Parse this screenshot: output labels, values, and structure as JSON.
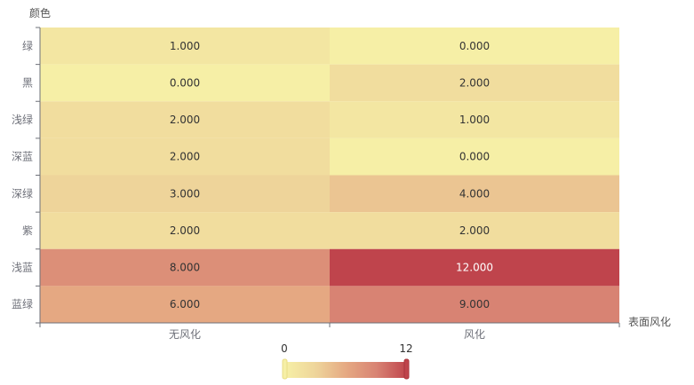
{
  "chart_data": {
    "type": "heatmap",
    "ylabel": "颜色",
    "xlabel": "表面风化",
    "x_categories": [
      "无风化",
      "风化"
    ],
    "y_categories": [
      "绿",
      "黑",
      "浅绿",
      "深蓝",
      "深绿",
      "紫",
      "浅蓝",
      "蓝绿"
    ],
    "values": [
      [
        1,
        0
      ],
      [
        0,
        2
      ],
      [
        2,
        1
      ],
      [
        2,
        0
      ],
      [
        3,
        4
      ],
      [
        2,
        2
      ],
      [
        8,
        12
      ],
      [
        6,
        9
      ]
    ],
    "value_format_decimals": 3,
    "visual_map": {
      "min": 0,
      "max": 12,
      "min_label": "0",
      "max_label": "12"
    },
    "colors": [
      "#f6efa6",
      "#eed49a",
      "#e5a882",
      "#d88373",
      "#bf444c"
    ]
  }
}
